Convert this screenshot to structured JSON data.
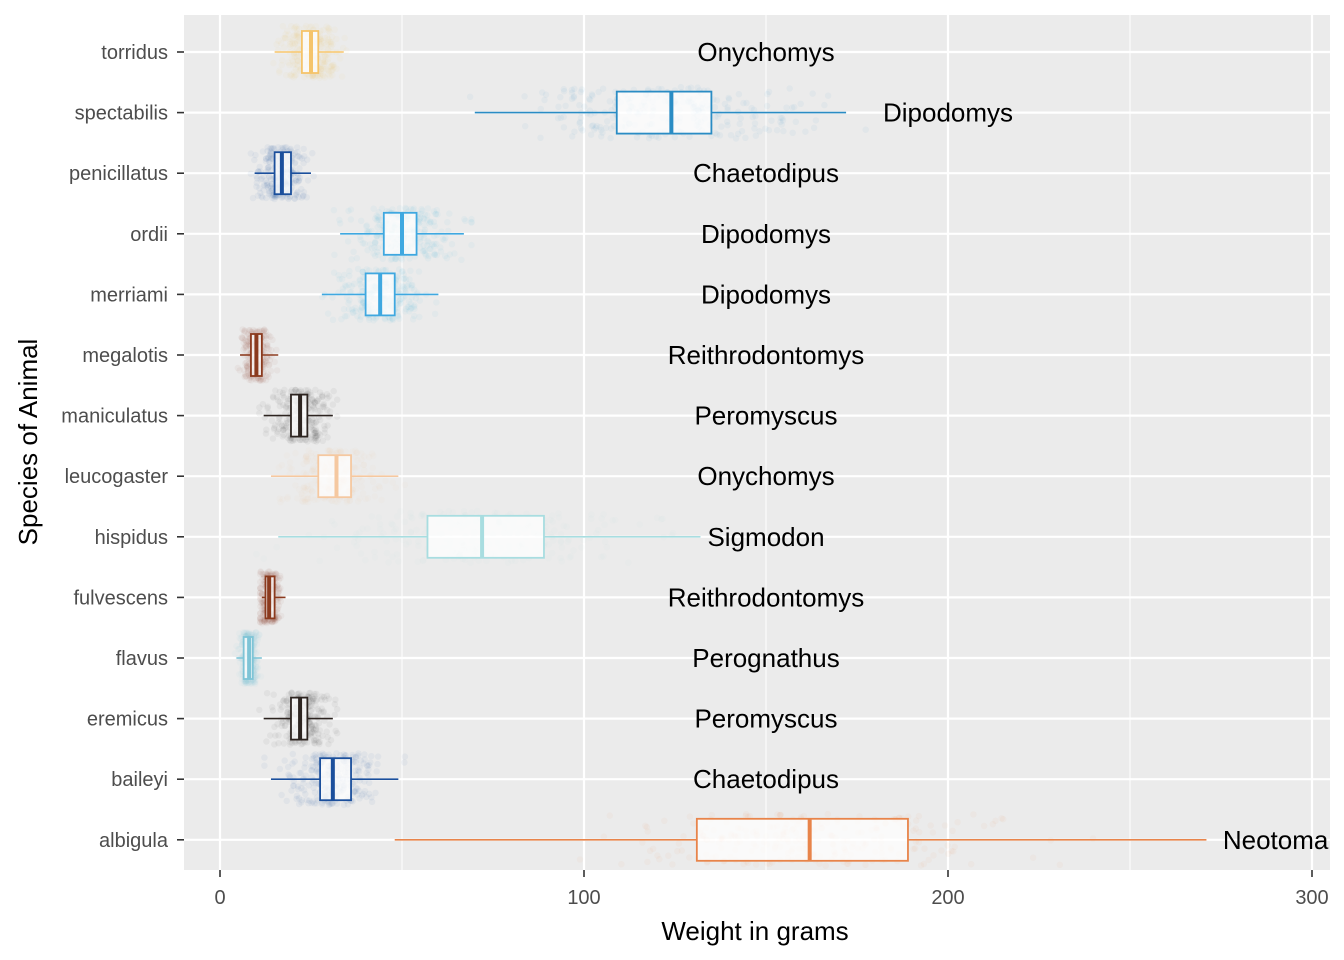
{
  "chart_data": {
    "type": "boxplot",
    "orientation": "horizontal",
    "title": "",
    "xlabel": "Weight in grams",
    "ylabel": "Species of Animal",
    "xlim": [
      -10,
      303
    ],
    "xticks": [
      0,
      100,
      200,
      300
    ],
    "grid": true,
    "legend": "none",
    "categories": [
      "albigula",
      "baileyi",
      "eremicus",
      "flavus",
      "fulvescens",
      "hispidus",
      "leucogaster",
      "maniculatus",
      "megalotis",
      "merriami",
      "ordii",
      "penicillatus",
      "spectabilis",
      "torridus"
    ],
    "series": [
      {
        "species": "albigula",
        "genus": "Neotoma",
        "color": "#e8844a",
        "whisker_low": 48,
        "q1": 131,
        "median": 162,
        "q3": 189,
        "whisker_high": 271,
        "spread": 26
      },
      {
        "species": "baileyi",
        "genus": "Chaetodipus",
        "color": "#1b4f9c",
        "whisker_low": 14,
        "q1": 27.5,
        "median": 31,
        "q3": 36,
        "whisker_high": 49,
        "spread": 6
      },
      {
        "species": "eremicus",
        "genus": "Peromyscus",
        "color": "#2d2420",
        "whisker_low": 12,
        "q1": 19.5,
        "median": 22,
        "q3": 24,
        "whisker_high": 31,
        "spread": 4
      },
      {
        "species": "flavus",
        "genus": "Perognathus",
        "color": "#7ec4d6",
        "whisker_low": 4.5,
        "q1": 6.5,
        "median": 8,
        "q3": 9,
        "whisker_high": 11.5,
        "spread": 1.4
      },
      {
        "species": "fulvescens",
        "genus": "Reithrodontomys",
        "color": "#8b3a1e",
        "whisker_low": 11.5,
        "q1": 12.5,
        "median": 13.5,
        "q3": 15,
        "whisker_high": 18,
        "spread": 1.5
      },
      {
        "species": "hispidus",
        "genus": "Sigmodon",
        "color": "#a8dde0",
        "whisker_low": 16,
        "q1": 57,
        "median": 72,
        "q3": 89,
        "whisker_high": 132,
        "spread": 20
      },
      {
        "species": "leucogaster",
        "genus": "Onychomys",
        "color": "#f5c8a0",
        "whisker_low": 14,
        "q1": 27,
        "median": 32,
        "q3": 36,
        "whisker_high": 49,
        "spread": 6
      },
      {
        "species": "maniculatus",
        "genus": "Peromyscus",
        "color": "#2d2420",
        "whisker_low": 12,
        "q1": 19.5,
        "median": 22,
        "q3": 24,
        "whisker_high": 31,
        "spread": 4
      },
      {
        "species": "megalotis",
        "genus": "Reithrodontomys",
        "color": "#8b3a1e",
        "whisker_low": 5.5,
        "q1": 8.5,
        "median": 10,
        "q3": 11.5,
        "whisker_high": 16,
        "spread": 2
      },
      {
        "species": "merriami",
        "genus": "Dipodomys",
        "color": "#3fa8e0",
        "whisker_low": 28,
        "q1": 40,
        "median": 44,
        "q3": 48,
        "whisker_high": 60,
        "spread": 6
      },
      {
        "species": "ordii",
        "genus": "Dipodomys",
        "color": "#3fa8e0",
        "whisker_low": 33,
        "q1": 45,
        "median": 50,
        "q3": 54,
        "whisker_high": 67,
        "spread": 7
      },
      {
        "species": "penicillatus",
        "genus": "Chaetodipus",
        "color": "#1b4f9c",
        "whisker_low": 9.5,
        "q1": 15,
        "median": 17,
        "q3": 19.5,
        "whisker_high": 25,
        "spread": 3.5
      },
      {
        "species": "spectabilis",
        "genus": "Dipodomys",
        "color": "#2a8cc4",
        "whisker_low": 70,
        "q1": 109,
        "median": 124,
        "q3": 135,
        "whisker_high": 172,
        "spread": 18
      },
      {
        "species": "torridus",
        "genus": "Onychomys",
        "color": "#f5c46a",
        "whisker_low": 15,
        "q1": 22.5,
        "median": 25,
        "q3": 27,
        "whisker_high": 34,
        "spread": 4
      }
    ],
    "genus_label_x_default": 150,
    "genus_label_x_overrides": {
      "spectabilis": 200,
      "albigula": 290
    }
  }
}
